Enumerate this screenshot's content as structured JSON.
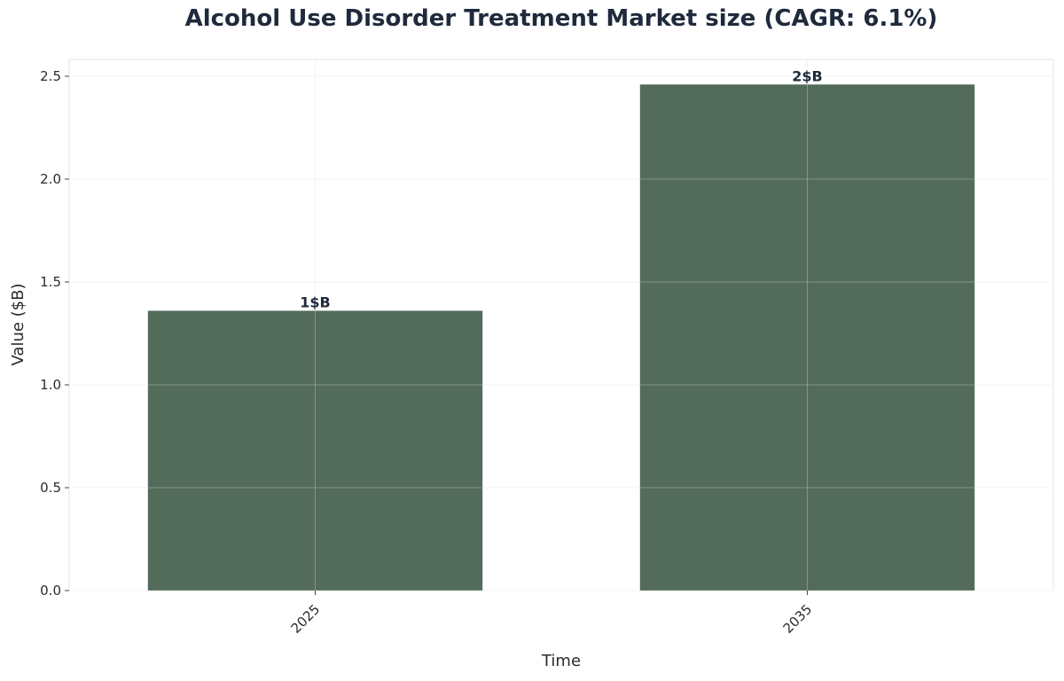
{
  "chart_data": {
    "type": "bar",
    "title": "Alcohol Use Disorder Treatment Market size (CAGR: 6.1%)",
    "xlabel": "Time",
    "ylabel": "Value ($B)",
    "categories": [
      "2025",
      "2035"
    ],
    "values": [
      1.36,
      2.46
    ],
    "data_labels": [
      "1$B",
      "2$B"
    ],
    "ylim": [
      0,
      2.58
    ],
    "yticks": [
      "0.0",
      "0.5",
      "1.0",
      "1.5",
      "2.0",
      "2.5"
    ],
    "grid": true,
    "bar_color": "#536b5a"
  }
}
